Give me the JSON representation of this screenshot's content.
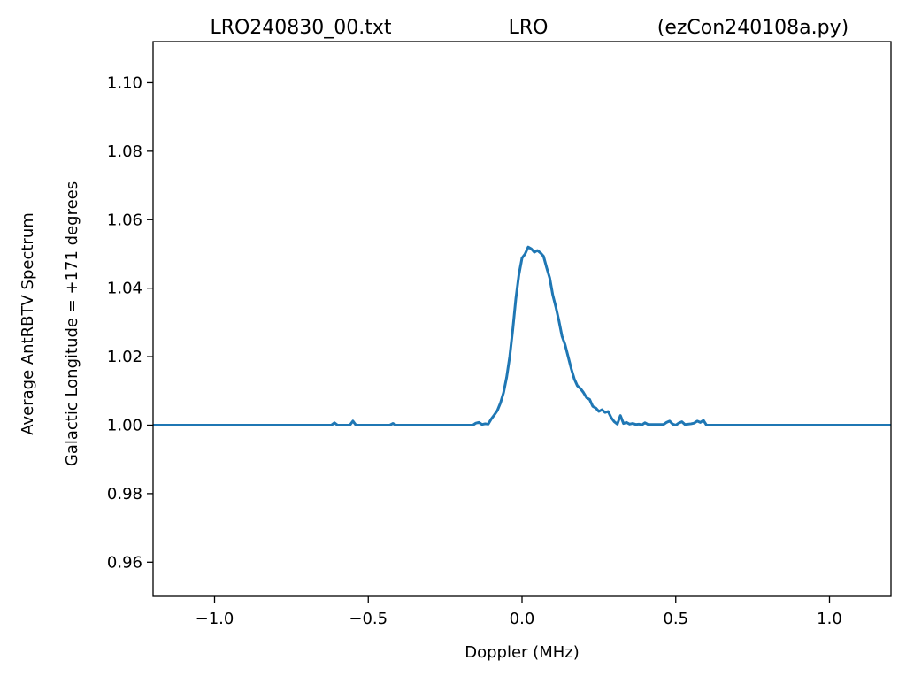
{
  "chart_data": {
    "type": "line",
    "title": {
      "left": "LRO240830_00.txt",
      "center": "LRO",
      "right": "(ezCon240108a.py)"
    },
    "xlabel": "Doppler (MHz)",
    "ylabel": [
      "Average AntRBTV Spectrum",
      "Galactic Longitude = +171 degrees"
    ],
    "xlim": [
      -1.2,
      1.2
    ],
    "ylim": [
      0.95,
      1.112
    ],
    "xticks": [
      -1.0,
      -0.5,
      0.0,
      0.5,
      1.0
    ],
    "xtick_labels": [
      "−1.0",
      "−0.5",
      "0.0",
      "0.5",
      "1.0"
    ],
    "yticks": [
      0.96,
      0.98,
      1.0,
      1.02,
      1.04,
      1.06,
      1.08,
      1.1
    ],
    "ytick_labels": [
      "0.96",
      "0.98",
      "1.00",
      "1.02",
      "1.04",
      "1.06",
      "1.08",
      "1.10"
    ],
    "grid": false,
    "series": [
      {
        "color": "#1f77b4",
        "points": [
          [
            -1.2,
            1.0
          ],
          [
            -0.62,
            1.0
          ],
          [
            -0.61,
            1.0007
          ],
          [
            -0.6,
            1.0
          ],
          [
            -0.56,
            1.0
          ],
          [
            -0.55,
            1.0012
          ],
          [
            -0.54,
            1.0
          ],
          [
            -0.43,
            1.0
          ],
          [
            -0.42,
            1.0005
          ],
          [
            -0.41,
            1.0
          ],
          [
            -0.16,
            1.0
          ],
          [
            -0.15,
            1.0006
          ],
          [
            -0.14,
            1.0008
          ],
          [
            -0.13,
            1.0002
          ],
          [
            -0.12,
            1.0004
          ],
          [
            -0.11,
            1.0003
          ],
          [
            -0.1,
            1.0018
          ],
          [
            -0.09,
            1.003
          ],
          [
            -0.08,
            1.0043
          ],
          [
            -0.07,
            1.0065
          ],
          [
            -0.06,
            1.0095
          ],
          [
            -0.05,
            1.014
          ],
          [
            -0.04,
            1.02
          ],
          [
            -0.03,
            1.028
          ],
          [
            -0.02,
            1.037
          ],
          [
            -0.01,
            1.044
          ],
          [
            0.0,
            1.0488
          ],
          [
            0.01,
            1.05
          ],
          [
            0.02,
            1.052
          ],
          [
            0.03,
            1.0515
          ],
          [
            0.04,
            1.0505
          ],
          [
            0.05,
            1.051
          ],
          [
            0.06,
            1.0503
          ],
          [
            0.07,
            1.0493
          ],
          [
            0.08,
            1.046
          ],
          [
            0.09,
            1.043
          ],
          [
            0.1,
            1.038
          ],
          [
            0.11,
            1.0345
          ],
          [
            0.12,
            1.0305
          ],
          [
            0.13,
            1.026
          ],
          [
            0.14,
            1.0235
          ],
          [
            0.15,
            1.02
          ],
          [
            0.16,
            1.0165
          ],
          [
            0.17,
            1.0135
          ],
          [
            0.18,
            1.0115
          ],
          [
            0.19,
            1.0107
          ],
          [
            0.2,
            1.0095
          ],
          [
            0.21,
            1.008
          ],
          [
            0.22,
            1.0075
          ],
          [
            0.23,
            1.0055
          ],
          [
            0.24,
            1.005
          ],
          [
            0.25,
            1.004
          ],
          [
            0.26,
            1.0045
          ],
          [
            0.27,
            1.0037
          ],
          [
            0.28,
            1.004
          ],
          [
            0.29,
            1.0022
          ],
          [
            0.3,
            1.001
          ],
          [
            0.31,
            1.0003
          ],
          [
            0.32,
            1.0028
          ],
          [
            0.33,
            1.0005
          ],
          [
            0.34,
            1.0008
          ],
          [
            0.35,
            1.0003
          ],
          [
            0.36,
            1.0005
          ],
          [
            0.37,
            1.0002
          ],
          [
            0.38,
            1.0003
          ],
          [
            0.39,
            1.0001
          ],
          [
            0.4,
            1.0007
          ],
          [
            0.41,
            1.0002
          ],
          [
            0.46,
            1.0002
          ],
          [
            0.47,
            1.0008
          ],
          [
            0.48,
            1.0012
          ],
          [
            0.49,
            1.0003
          ],
          [
            0.5,
            1.0
          ],
          [
            0.51,
            1.0006
          ],
          [
            0.52,
            1.001
          ],
          [
            0.53,
            1.0002
          ],
          [
            0.55,
            1.0004
          ],
          [
            0.56,
            1.0006
          ],
          [
            0.57,
            1.0012
          ],
          [
            0.58,
            1.0008
          ],
          [
            0.59,
            1.0014
          ],
          [
            0.6,
            1.0
          ],
          [
            1.2,
            1.0
          ]
        ]
      }
    ]
  }
}
